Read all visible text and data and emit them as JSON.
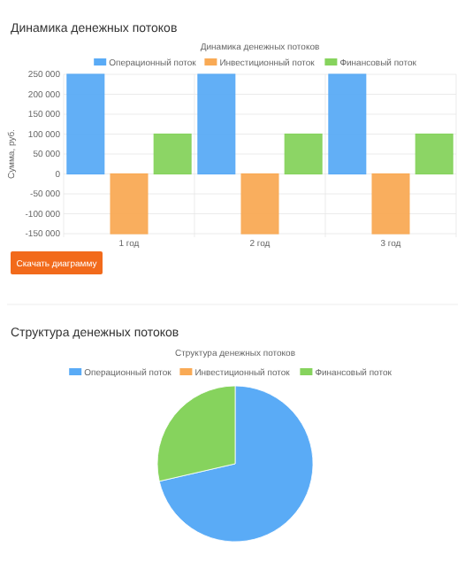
{
  "chart_data": [
    {
      "type": "bar",
      "title": "Динамика денежных потоков",
      "subtitle": "Динамика денежных потоков",
      "ylabel": "Сумма, руб.",
      "categories": [
        "1 год",
        "2 год",
        "3 год"
      ],
      "series": [
        {
          "name": "Операционный поток",
          "color": "#5aabf6",
          "values": [
            250000,
            250000,
            250000
          ]
        },
        {
          "name": "Инвестиционный поток",
          "color": "#f9aa55",
          "values": [
            -150000,
            -150000,
            -150000
          ]
        },
        {
          "name": "Финансовый поток",
          "color": "#86d35d",
          "values": [
            100000,
            100000,
            100000
          ]
        }
      ],
      "ylim": [
        -150000,
        250000
      ],
      "yticks": [
        {
          "value": -150000,
          "label": "-150 000"
        },
        {
          "value": -100000,
          "label": "-100 000"
        },
        {
          "value": -50000,
          "label": "-50 000"
        },
        0,
        {
          "value": 50000,
          "label": "50 000"
        },
        {
          "value": 100000,
          "label": "100 000"
        },
        {
          "value": 150000,
          "label": "150 000"
        },
        {
          "value": 200000,
          "label": "200 000"
        },
        {
          "value": 250000,
          "label": "250 000"
        }
      ],
      "grid": true,
      "legend": "top",
      "annotations": [
        "Скачать диаграмму"
      ]
    },
    {
      "type": "pie",
      "title": "Структура денежных потоков",
      "subtitle": "Структура денежных потоков",
      "categories": [
        "Операционный поток",
        "Инвестиционный поток",
        "Финансовый поток"
      ],
      "values": [
        71.4,
        0,
        28.6
      ],
      "colors": [
        "#5aabf6",
        "#f9aa55",
        "#86d35d"
      ],
      "legend": "top"
    }
  ]
}
